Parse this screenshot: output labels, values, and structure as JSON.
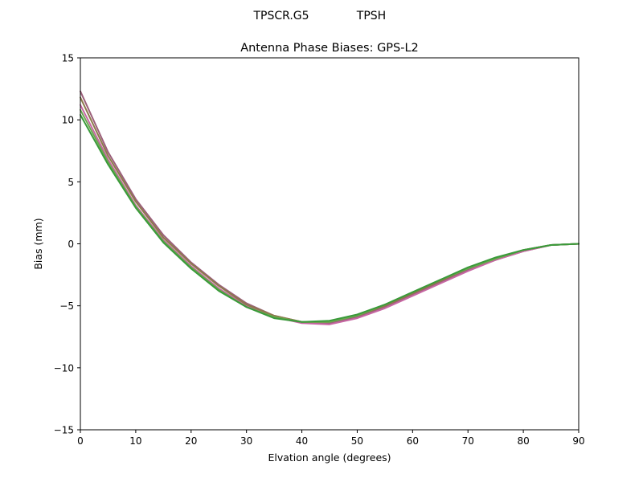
{
  "chart_data": {
    "type": "line",
    "suptitle_left": "TPSCR.G5",
    "suptitle_right": "TPSH",
    "title": "Antenna Phase Biases: GPS-L2",
    "xlabel": "Elvation angle (degrees)",
    "ylabel": "Bias (mm)",
    "xlim": [
      0,
      90
    ],
    "ylim": [
      -15,
      15
    ],
    "xticks": [
      0,
      10,
      20,
      30,
      40,
      50,
      60,
      70,
      80,
      90
    ],
    "yticks": [
      -15,
      -10,
      -5,
      0,
      5,
      10,
      15
    ],
    "ytick_labels": [
      "−15",
      "−10",
      "−5",
      "0",
      "5",
      "10",
      "15"
    ],
    "grid": false,
    "x": [
      0,
      5,
      10,
      15,
      20,
      25,
      30,
      35,
      40,
      45,
      50,
      55,
      60,
      65,
      70,
      75,
      80,
      85,
      90
    ],
    "series": [
      {
        "color": "#9b5f7a",
        "values": [
          12.3,
          7.4,
          3.6,
          0.7,
          -1.5,
          -3.3,
          -4.8,
          -5.8,
          -6.3,
          -6.4,
          -5.9,
          -5.1,
          -4.1,
          -3.1,
          -2.1,
          -1.3,
          -0.6,
          -0.1,
          0.0
        ]
      },
      {
        "color": "#c767a3",
        "values": [
          11.2,
          6.8,
          3.1,
          0.3,
          -1.8,
          -3.6,
          -5.0,
          -5.9,
          -6.4,
          -6.5,
          -6.0,
          -5.2,
          -4.2,
          -3.2,
          -2.2,
          -1.3,
          -0.6,
          -0.1,
          0.0
        ]
      },
      {
        "color": "#8c7a4b",
        "values": [
          11.8,
          7.1,
          3.4,
          0.5,
          -1.6,
          -3.4,
          -4.9,
          -5.8,
          -6.3,
          -6.3,
          -5.8,
          -5.0,
          -4.0,
          -3.0,
          -2.0,
          -1.2,
          -0.5,
          -0.1,
          0.0
        ]
      },
      {
        "color": "#6aa84f",
        "values": [
          10.8,
          6.6,
          3.0,
          0.2,
          -1.9,
          -3.7,
          -5.1,
          -5.9,
          -6.3,
          -6.3,
          -5.8,
          -4.9,
          -3.9,
          -2.9,
          -2.0,
          -1.2,
          -0.5,
          -0.1,
          0.0
        ]
      },
      {
        "color": "#3a9a3a",
        "values": [
          10.4,
          6.4,
          2.9,
          0.1,
          -2.0,
          -3.8,
          -5.1,
          -6.0,
          -6.3,
          -6.2,
          -5.7,
          -4.9,
          -3.9,
          -2.9,
          -1.9,
          -1.1,
          -0.5,
          -0.1,
          0.0
        ]
      }
    ]
  }
}
